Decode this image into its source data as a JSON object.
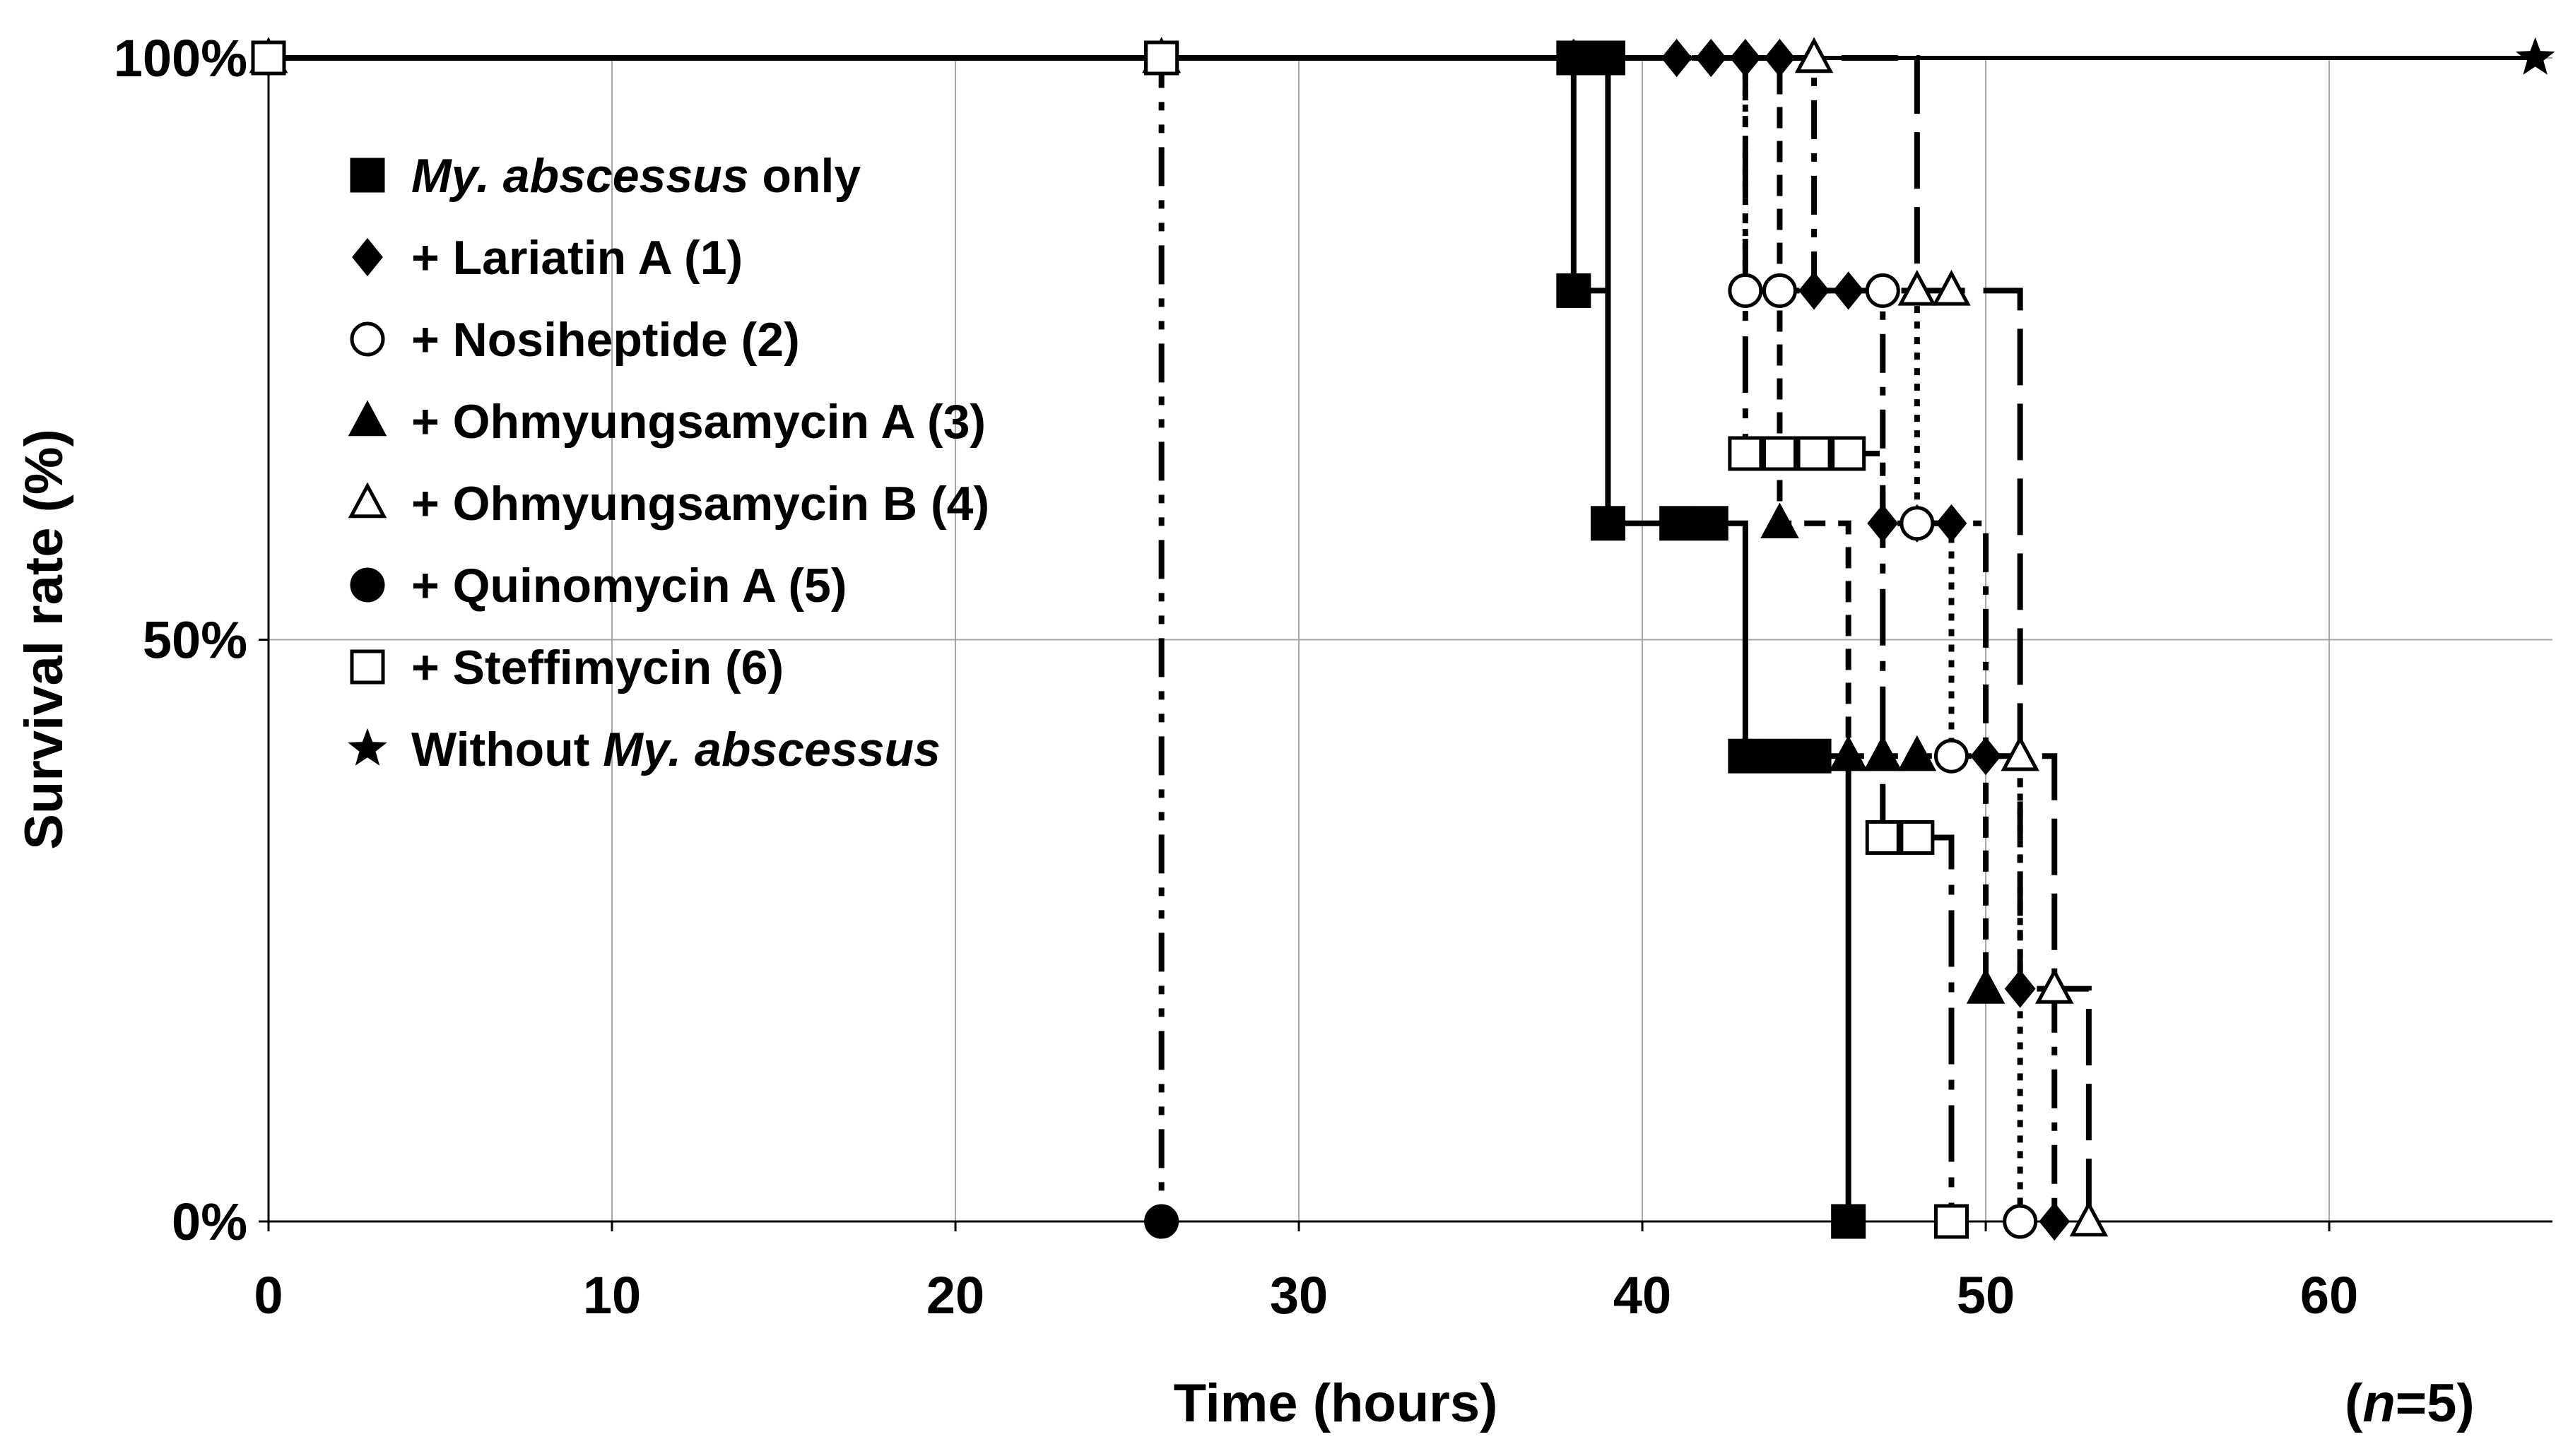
{
  "chart_data": {
    "type": "line",
    "subtype": "step survival curve",
    "xlabel": "Time (hours)",
    "ylabel": "Survival rate (%)",
    "note_prefix": "(",
    "note_italic": "n",
    "note_suffix": "=5)",
    "xlim": [
      0,
      66.5
    ],
    "ylim": [
      0,
      100
    ],
    "xticks": [
      0,
      10,
      20,
      30,
      40,
      50,
      60
    ],
    "yticks": [
      {
        "value": 0,
        "label": "0%"
      },
      {
        "value": 50,
        "label": "50%"
      },
      {
        "value": 100,
        "label": "100%"
      }
    ],
    "legend_position": "upper-left",
    "series": [
      {
        "name": "My. abscessus only",
        "legend_parts": [
          {
            "text": "My. abscessus",
            "italic": true
          },
          {
            "text": " only",
            "italic": false
          }
        ],
        "marker": "square-filled",
        "line": "solid",
        "points": [
          [
            0,
            100
          ],
          [
            26,
            100
          ],
          [
            38,
            100
          ],
          [
            39,
            100
          ],
          [
            38,
            80
          ],
          [
            39,
            60
          ],
          [
            41,
            60
          ],
          [
            42,
            60
          ],
          [
            43,
            40
          ],
          [
            44,
            40
          ],
          [
            45,
            40
          ],
          [
            46,
            0
          ]
        ]
      },
      {
        "name": "+ Lariatin A (1)",
        "legend_parts": [
          {
            "text": "+ Lariatin A (1)",
            "italic": false
          }
        ],
        "marker": "diamond-filled",
        "line": "dash-dot",
        "points": [
          [
            0,
            100
          ],
          [
            26,
            100
          ],
          [
            38,
            100
          ],
          [
            41,
            100
          ],
          [
            42,
            100
          ],
          [
            43,
            100
          ],
          [
            44,
            100
          ],
          [
            45,
            80
          ],
          [
            46,
            80
          ],
          [
            47,
            60
          ],
          [
            48,
            60
          ],
          [
            49,
            60
          ],
          [
            50,
            40
          ],
          [
            51,
            20
          ],
          [
            52,
            0
          ]
        ]
      },
      {
        "name": "+ Nosiheptide (2)",
        "legend_parts": [
          {
            "text": "+ Nosiheptide (2)",
            "italic": false
          }
        ],
        "marker": "circle-open",
        "line": "dotted",
        "points": [
          [
            0,
            100
          ],
          [
            26,
            100
          ],
          [
            43,
            80
          ],
          [
            44,
            80
          ],
          [
            47,
            80
          ],
          [
            48,
            60
          ],
          [
            49,
            40
          ],
          [
            51,
            0
          ]
        ]
      },
      {
        "name": "+ Ohmyungsamycin A (3)",
        "legend_parts": [
          {
            "text": "+ Ohmyungsamycin A (3)",
            "italic": false
          }
        ],
        "marker": "triangle-filled",
        "line": "short-dash",
        "points": [
          [
            0,
            100
          ],
          [
            26,
            100
          ],
          [
            44,
            60
          ],
          [
            46,
            40
          ],
          [
            47,
            40
          ],
          [
            48,
            40
          ],
          [
            50,
            20
          ]
        ]
      },
      {
        "name": "+ Ohmyungsamycin B (4)",
        "legend_parts": [
          {
            "text": "+ Ohmyungsamycin B (4)",
            "italic": false
          }
        ],
        "marker": "triangle-open",
        "line": "long-dash",
        "points": [
          [
            0,
            100
          ],
          [
            26,
            100
          ],
          [
            45,
            100
          ],
          [
            48,
            80
          ],
          [
            49,
            80
          ],
          [
            51,
            40
          ],
          [
            52,
            20
          ],
          [
            53,
            0
          ]
        ]
      },
      {
        "name": "+ Quinomycin A (5)",
        "legend_parts": [
          {
            "text": "+ Quinomycin A (5)",
            "italic": false
          }
        ],
        "marker": "circle-filled",
        "line": "dash-dot-dot",
        "points": [
          [
            0,
            100
          ],
          [
            26,
            100
          ],
          [
            26,
            0
          ]
        ]
      },
      {
        "name": "+ Steffimycin (6)",
        "legend_parts": [
          {
            "text": "+ Steffimycin (6)",
            "italic": false
          }
        ],
        "marker": "square-open",
        "line": "long-dash-dot",
        "points": [
          [
            0,
            100
          ],
          [
            26,
            100
          ],
          [
            43,
            66
          ],
          [
            44,
            66
          ],
          [
            45,
            66
          ],
          [
            46,
            66
          ],
          [
            47,
            33
          ],
          [
            48,
            33
          ],
          [
            49,
            0
          ]
        ]
      },
      {
        "name": "Without My. abscessus",
        "legend_parts": [
          {
            "text": "Without ",
            "italic": false
          },
          {
            "text": "My. abscessus",
            "italic": true
          }
        ],
        "marker": "star-filled",
        "line": "solid",
        "points": [
          [
            66,
            100
          ]
        ]
      }
    ]
  }
}
